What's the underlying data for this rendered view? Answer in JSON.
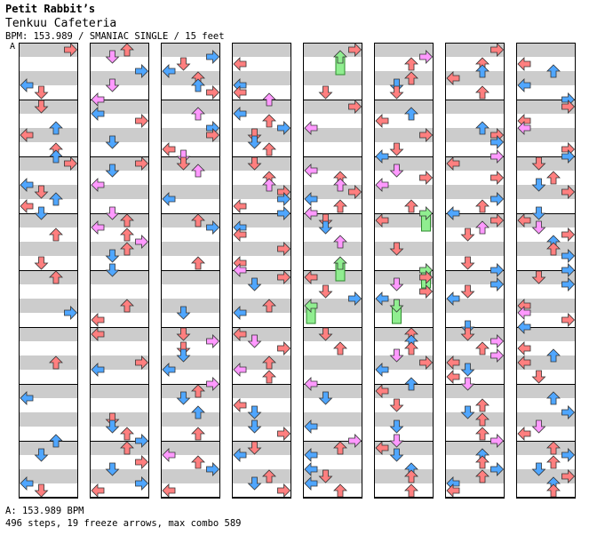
{
  "song": {
    "artist": "Petit Rabbit’s",
    "title": "Tenkuu Cafeteria",
    "info": "BPM: 153.989 / SMANIAC SINGLE / 15 feet"
  },
  "marker": {
    "label": "A"
  },
  "footer": {
    "bpm": "A: 153.989 BPM",
    "stats": "496 steps, 19 freeze arrows, max combo 589"
  },
  "colors": {
    "quarter": "#ff7f7f",
    "eighth": "#4fa6ff",
    "sixteenth": "#ff99ff",
    "freeze": "#90ee90",
    "band": "#cccccc"
  },
  "chart_data": {
    "type": "step-chart",
    "mode": "SMANIAC SINGLE",
    "bpm": 153.989,
    "difficulty_feet": 15,
    "columns_count": 8,
    "measures_per_column": 8,
    "total_steps": 496,
    "freeze_arrows": 19,
    "max_combo": 589
  }
}
